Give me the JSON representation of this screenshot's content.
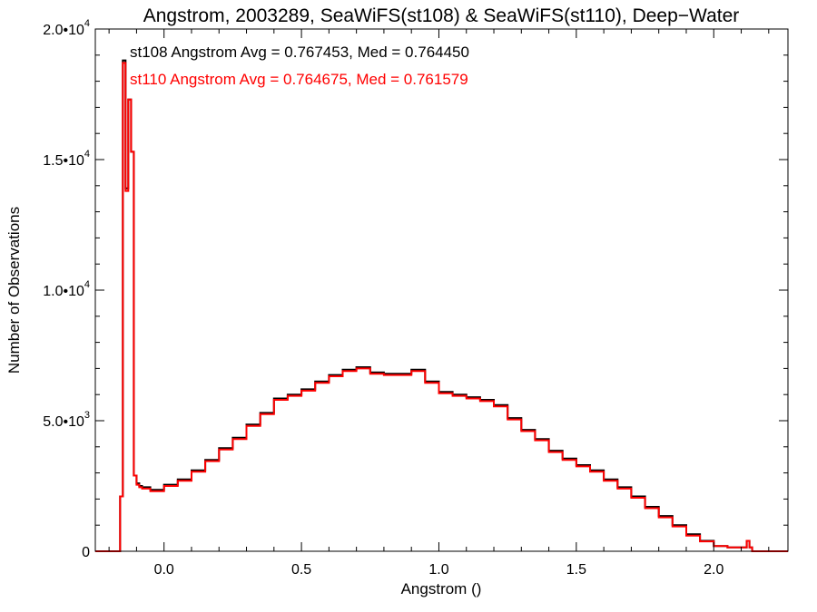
{
  "chart_data": {
    "type": "line",
    "title": "Angstrom, 2003289, SeaWiFS(st108) & SeaWiFS(st110), Deep−Water",
    "xlabel": "Angstrom ()",
    "ylabel": "Number of Observations",
    "xlim": [
      -0.25,
      2.27
    ],
    "ylim": [
      0,
      20000
    ],
    "x_ticks": [
      {
        "value": 0.0,
        "label": "0.0"
      },
      {
        "value": 0.5,
        "label": "0.5"
      },
      {
        "value": 1.0,
        "label": "1.0"
      },
      {
        "value": 1.5,
        "label": "1.5"
      },
      {
        "value": 2.0,
        "label": "2.0"
      }
    ],
    "y_ticks": [
      {
        "value": 0,
        "mantissa": "0",
        "exponent": ""
      },
      {
        "value": 5000,
        "mantissa": "5.0•10",
        "exponent": "3"
      },
      {
        "value": 10000,
        "mantissa": "1.0•10",
        "exponent": "4"
      },
      {
        "value": 15000,
        "mantissa": "1.5•10",
        "exponent": "4"
      },
      {
        "value": 20000,
        "mantissa": "2.0•10",
        "exponent": "4"
      }
    ],
    "grid": false,
    "annotations": [
      {
        "text": "st108 Angstrom Avg = 0.767453, Med = 0.764450",
        "color": "#000000"
      },
      {
        "text": "st110 Angstrom Avg = 0.764675, Med = 0.761579",
        "color": "#ff0000"
      }
    ],
    "series": [
      {
        "color": "#000000",
        "x": [
          -0.25,
          -0.16,
          -0.15,
          -0.14,
          -0.13,
          -0.12,
          -0.11,
          -0.1,
          -0.09,
          -0.08,
          -0.05,
          0.0,
          0.05,
          0.1,
          0.15,
          0.2,
          0.25,
          0.3,
          0.35,
          0.4,
          0.45,
          0.5,
          0.55,
          0.6,
          0.65,
          0.7,
          0.75,
          0.8,
          0.85,
          0.9,
          0.95,
          1.0,
          1.05,
          1.1,
          1.15,
          1.2,
          1.25,
          1.3,
          1.35,
          1.4,
          1.45,
          1.5,
          1.55,
          1.6,
          1.65,
          1.7,
          1.75,
          1.8,
          1.85,
          1.9,
          1.95,
          2.0,
          2.05,
          2.1,
          2.12,
          2.13,
          2.14,
          2.27
        ],
        "y": [
          0,
          2100,
          18800,
          13900,
          17300,
          15300,
          2900,
          2600,
          2500,
          2450,
          2350,
          2550,
          2750,
          3100,
          3500,
          3950,
          4350,
          4850,
          5300,
          5850,
          6000,
          6200,
          6500,
          6750,
          6950,
          7050,
          6850,
          6800,
          6800,
          6950,
          6500,
          6100,
          6000,
          5900,
          5800,
          5600,
          5100,
          4650,
          4300,
          3850,
          3550,
          3300,
          3100,
          2750,
          2450,
          2100,
          1700,
          1350,
          1000,
          650,
          400,
          200,
          150,
          150,
          400,
          150,
          0,
          0
        ]
      },
      {
        "color": "#ff0000",
        "x": [
          -0.25,
          -0.16,
          -0.15,
          -0.14,
          -0.13,
          -0.12,
          -0.11,
          -0.1,
          -0.09,
          -0.08,
          -0.05,
          0.0,
          0.05,
          0.1,
          0.15,
          0.2,
          0.25,
          0.3,
          0.35,
          0.4,
          0.45,
          0.5,
          0.55,
          0.6,
          0.65,
          0.7,
          0.75,
          0.8,
          0.85,
          0.9,
          0.95,
          1.0,
          1.05,
          1.1,
          1.15,
          1.2,
          1.25,
          1.3,
          1.35,
          1.4,
          1.45,
          1.5,
          1.55,
          1.6,
          1.65,
          1.7,
          1.75,
          1.8,
          1.85,
          1.9,
          1.95,
          2.0,
          2.05,
          2.1,
          2.12,
          2.13,
          2.14,
          2.27
        ],
        "y": [
          0,
          2100,
          18700,
          13800,
          17300,
          15300,
          2900,
          2550,
          2450,
          2400,
          2300,
          2500,
          2700,
          3050,
          3450,
          3900,
          4300,
          4800,
          5250,
          5800,
          5950,
          6150,
          6450,
          6700,
          6900,
          7000,
          6800,
          6750,
          6750,
          6900,
          6450,
          6050,
          5950,
          5850,
          5750,
          5550,
          5050,
          4600,
          4250,
          3800,
          3500,
          3250,
          3050,
          2700,
          2400,
          2050,
          1650,
          1300,
          950,
          600,
          380,
          200,
          150,
          150,
          400,
          150,
          0,
          0
        ]
      }
    ]
  }
}
